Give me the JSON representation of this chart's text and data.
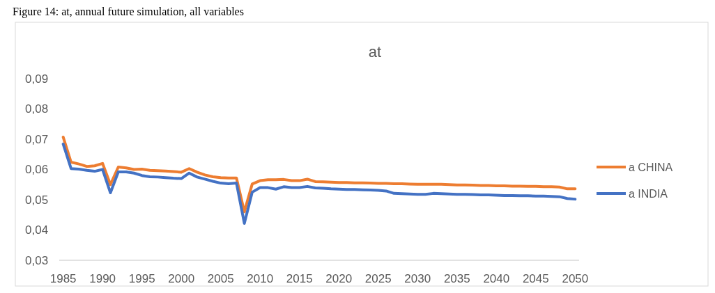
{
  "chart_data": {
    "type": "line",
    "title": "at",
    "annotations": [
      "Figure 14: at, annual future simulation, all variables"
    ],
    "x": [
      1985,
      1986,
      1987,
      1988,
      1989,
      1990,
      1991,
      1992,
      1993,
      1994,
      1995,
      1996,
      1997,
      1998,
      1999,
      2000,
      2001,
      2002,
      2003,
      2004,
      2005,
      2006,
      2007,
      2008,
      2009,
      2010,
      2011,
      2012,
      2013,
      2014,
      2015,
      2016,
      2017,
      2018,
      2019,
      2020,
      2021,
      2022,
      2023,
      2024,
      2025,
      2026,
      2027,
      2028,
      2029,
      2030,
      2031,
      2032,
      2033,
      2034,
      2035,
      2036,
      2037,
      2038,
      2039,
      2040,
      2041,
      2042,
      2043,
      2044,
      2045,
      2046,
      2047,
      2048,
      2049,
      2050
    ],
    "series": [
      {
        "name": "a CHINA",
        "color": "#ed7d31",
        "values": [
          0.0707,
          0.0624,
          0.0618,
          0.061,
          0.0612,
          0.062,
          0.055,
          0.0608,
          0.0605,
          0.06,
          0.0601,
          0.0597,
          0.0596,
          0.0595,
          0.0593,
          0.0591,
          0.0603,
          0.0591,
          0.0582,
          0.0576,
          0.0573,
          0.0572,
          0.0572,
          0.046,
          0.0552,
          0.0563,
          0.0566,
          0.0566,
          0.0567,
          0.0563,
          0.0563,
          0.0568,
          0.056,
          0.0559,
          0.0558,
          0.0557,
          0.0557,
          0.0556,
          0.0556,
          0.0555,
          0.0554,
          0.0554,
          0.0553,
          0.0553,
          0.0552,
          0.0551,
          0.0551,
          0.0551,
          0.0551,
          0.055,
          0.0549,
          0.0549,
          0.0548,
          0.0547,
          0.0547,
          0.0546,
          0.0546,
          0.0545,
          0.0545,
          0.0544,
          0.0544,
          0.0543,
          0.0543,
          0.0542,
          0.0536,
          0.0536
        ]
      },
      {
        "name": "a INDIA",
        "color": "#4472c4",
        "values": [
          0.0684,
          0.0603,
          0.0601,
          0.0597,
          0.0594,
          0.06,
          0.0523,
          0.0592,
          0.0592,
          0.0588,
          0.058,
          0.0576,
          0.0575,
          0.0573,
          0.0571,
          0.057,
          0.0588,
          0.0575,
          0.0568,
          0.0561,
          0.0555,
          0.0553,
          0.0555,
          0.0422,
          0.0525,
          0.054,
          0.054,
          0.0535,
          0.0543,
          0.054,
          0.054,
          0.0544,
          0.0539,
          0.0538,
          0.0536,
          0.0535,
          0.0534,
          0.0534,
          0.0533,
          0.0532,
          0.0531,
          0.0529,
          0.0521,
          0.052,
          0.0519,
          0.0518,
          0.0518,
          0.0521,
          0.052,
          0.0519,
          0.0518,
          0.0518,
          0.0517,
          0.0516,
          0.0516,
          0.0515,
          0.0514,
          0.0514,
          0.0513,
          0.0513,
          0.0512,
          0.0512,
          0.0511,
          0.051,
          0.0504,
          0.0502
        ]
      }
    ],
    "xlim": [
      1984.5,
      2050.5
    ],
    "xticks": [
      1985,
      1990,
      1995,
      2000,
      2005,
      2010,
      2015,
      2020,
      2025,
      2030,
      2035,
      2040,
      2045,
      2050
    ],
    "ylim": [
      0.03,
      0.09
    ],
    "yticks": [
      {
        "value": 0.03,
        "label": "0,03"
      },
      {
        "value": 0.04,
        "label": "0,04"
      },
      {
        "value": 0.05,
        "label": "0,05"
      },
      {
        "value": 0.06,
        "label": "0,06"
      },
      {
        "value": 0.07,
        "label": "0,07"
      },
      {
        "value": 0.08,
        "label": "0,08"
      },
      {
        "value": 0.09,
        "label": "0,09"
      }
    ],
    "grid": false,
    "legend": "right",
    "line_style": "solid",
    "marker": "none"
  }
}
